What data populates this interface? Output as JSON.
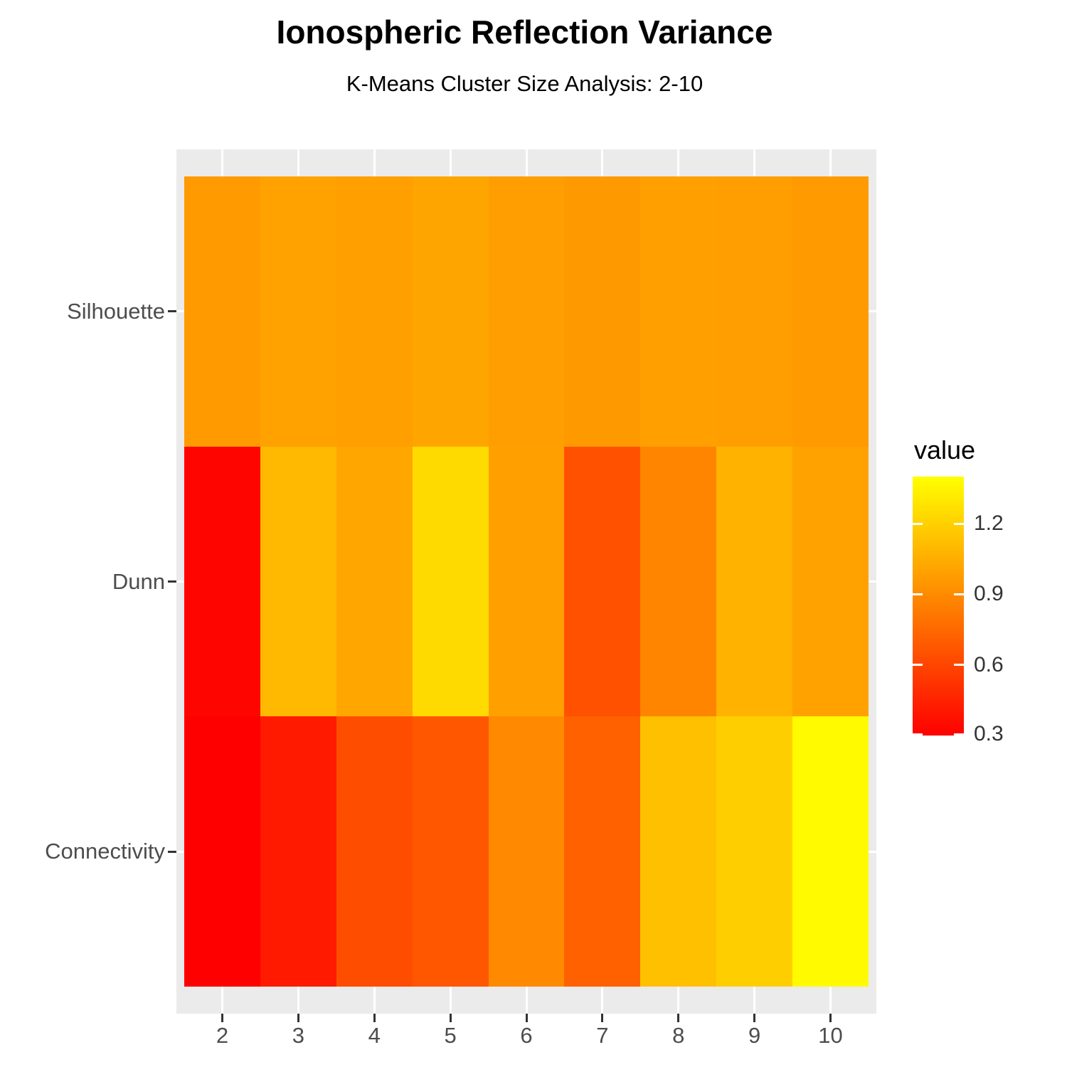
{
  "title": "Ionospheric Reflection Variance",
  "subtitle": "K-Means Cluster Size Analysis: 2-10",
  "chart_data": {
    "type": "heatmap",
    "title": "Ionospheric Reflection Variance",
    "subtitle": "K-Means Cluster Size Analysis: 2-10",
    "xlabel": "",
    "ylabel": "",
    "x_categories": [
      "2",
      "3",
      "4",
      "5",
      "6",
      "7",
      "8",
      "9",
      "10"
    ],
    "y_categories": [
      "Silhouette",
      "Dunn",
      "Connectivity"
    ],
    "values": [
      [
        0.97,
        1.0,
        0.99,
        1.01,
        0.98,
        0.96,
        0.99,
        0.98,
        0.97
      ],
      [
        0.32,
        1.1,
        1.02,
        1.24,
        0.99,
        0.65,
        0.87,
        1.07,
        1.0
      ],
      [
        0.3,
        0.41,
        0.63,
        0.67,
        0.89,
        0.72,
        1.13,
        1.19,
        1.38
      ]
    ],
    "legend": {
      "title": "value",
      "ticks": [
        1.2,
        0.9,
        0.6,
        0.3
      ],
      "min": 0.3,
      "max": 1.4,
      "low_color": "#FF0000",
      "high_color": "#FFFF00"
    },
    "panel_background": "#EBEBEB",
    "gridline_color": "#FFFFFF",
    "axis_text_color": "#4D4D4D"
  }
}
